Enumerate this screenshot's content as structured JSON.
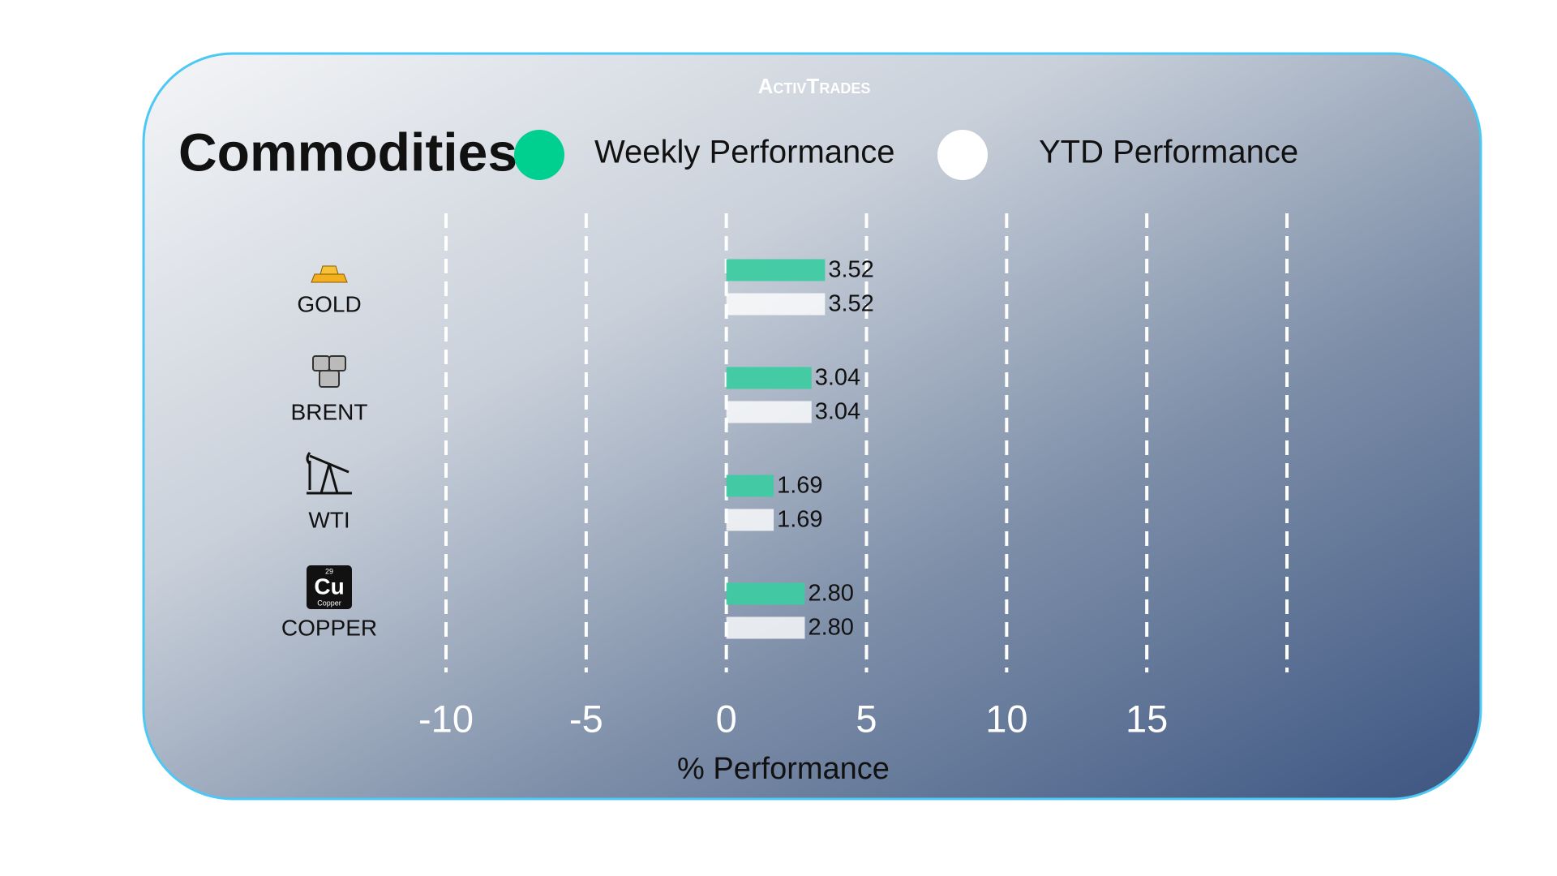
{
  "logo": "ActivTrades",
  "icons": {
    "copper": {
      "number": "29",
      "symbol": "Cu",
      "name": "Copper"
    }
  },
  "chart_data": {
    "type": "hbar",
    "title": "Commodities",
    "categories": [
      "GOLD",
      "BRENT",
      "WTI",
      "COPPER"
    ],
    "series": [
      {
        "name": "Weekly Performance",
        "color": "#3ecba2",
        "values": [
          3.52,
          3.04,
          1.69,
          2.8
        ],
        "value_labels": [
          "3.52",
          "3.04",
          "1.69",
          "2.80"
        ]
      },
      {
        "name": "YTD Performance",
        "color": "#ffffff",
        "values": [
          3.52,
          3.04,
          1.69,
          2.8
        ],
        "value_labels": [
          "3.52",
          "3.04",
          "1.69",
          "2.80"
        ]
      }
    ],
    "xlim": [
      -10,
      20
    ],
    "xticks": [
      -10,
      -5,
      0,
      5,
      10,
      15
    ],
    "xlabel": "% Performance",
    "grid": true
  }
}
